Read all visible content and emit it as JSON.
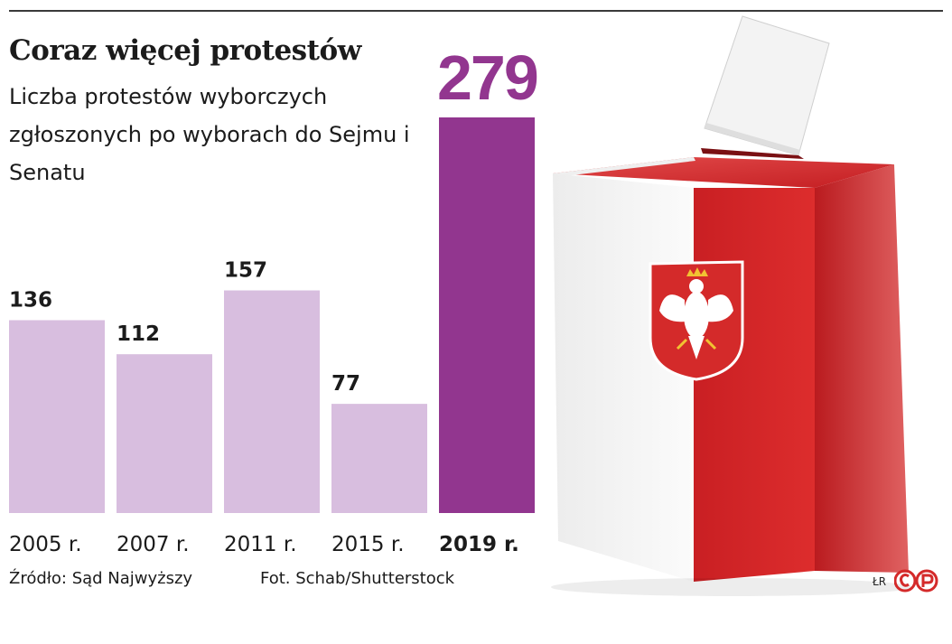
{
  "header": {
    "title": "Coraz więcej protestów",
    "subtitle": "Liczba protestów wyborczych zgłoszonych po wyborach do Sejmu i Senatu"
  },
  "chart_data": {
    "type": "bar",
    "title": "Coraz więcej protestów",
    "subtitle": "Liczba protestów wyborczych zgłoszonych po wyborach do Sejmu i Senatu",
    "categories": [
      "2005 r.",
      "2007 r.",
      "2011 r.",
      "2015 r.",
      "2019 r."
    ],
    "values": [
      136,
      112,
      157,
      77,
      279
    ],
    "highlight_index": 4,
    "colors": {
      "bar": "#d8bedf",
      "highlight": "#92368f",
      "label": "#1b1b1b",
      "highlight_label": "#92368f"
    },
    "ylim": [
      0,
      279
    ],
    "grid": false,
    "xlabel": "",
    "ylabel": ""
  },
  "footer": {
    "source": "Źródło: Sąd Najwyższy",
    "photo_credit": "Fot. Schab/Shutterstock",
    "initials": "ŁR"
  },
  "illustration": {
    "subject": "ballot-box-icon",
    "colors": {
      "red": "#d42a2a",
      "white": "#f4f4f4",
      "eagle": "#ffffff"
    }
  }
}
